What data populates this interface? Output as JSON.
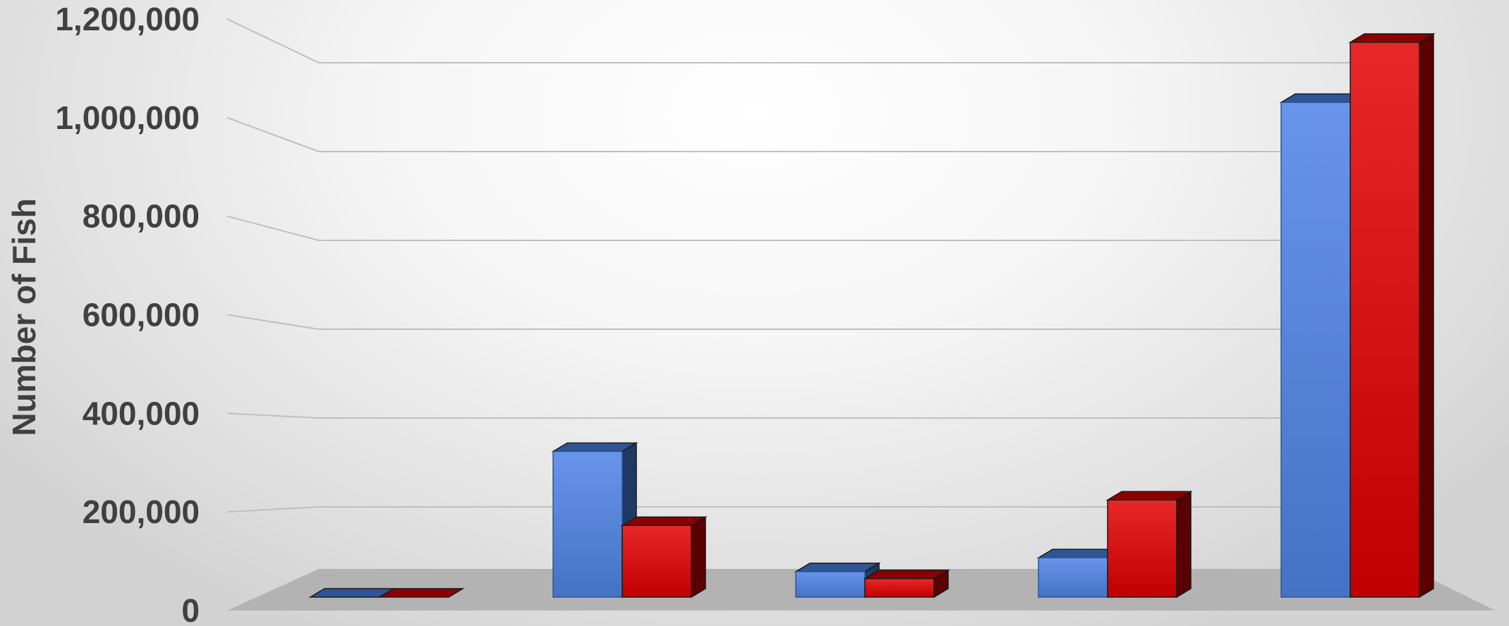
{
  "chart_data": {
    "type": "bar",
    "style": "3d-clustered-column",
    "ylabel": "Number of Fish",
    "ylim": [
      0,
      1200000
    ],
    "yticks": [
      0,
      200000,
      400000,
      600000,
      800000,
      1000000,
      1200000
    ],
    "ytick_labels": [
      "0",
      "200,000",
      "400,000",
      "600,000",
      "800,000",
      "1,000,000",
      "1,200,000"
    ],
    "grid": true,
    "legend": "none",
    "categories": [
      "",
      "",
      "",
      "",
      ""
    ],
    "series": [
      {
        "color": "#4472C4",
        "values": [
          0,
          315000,
          55000,
          85000,
          1070000
        ]
      },
      {
        "color": "#C00000",
        "values": [
          0,
          155000,
          40000,
          210000,
          1200000
        ]
      }
    ]
  }
}
